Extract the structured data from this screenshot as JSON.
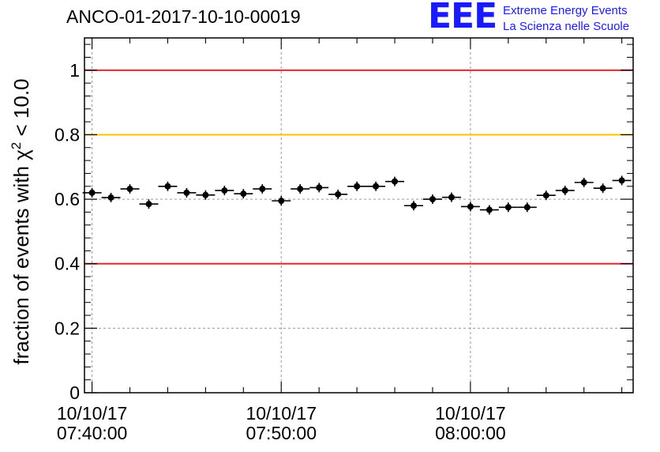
{
  "header": {
    "title": "ANCO-01-2017-10-10-00019",
    "logo_mark": "EEE",
    "logo_line1": "Extreme Energy Events",
    "logo_line2": "La Scienza nelle Scuole"
  },
  "chart_data": {
    "type": "scatter",
    "title": "ANCO-01-2017-10-10-00019",
    "ylabel_text": "fraction of events with χ",
    "ylabel_sup": "2",
    "ylabel_tail": " < 10.0",
    "xlabel": "",
    "ylim": [
      0,
      1.1
    ],
    "yticks": [
      0,
      0.2,
      0.4,
      0.6,
      0.8,
      1
    ],
    "ytick_labels": [
      "0",
      "0.2",
      "0.4",
      "0.6",
      "0.8",
      "1"
    ],
    "xlim_minutes": [
      -0.4,
      28.6
    ],
    "xticks_minutes": [
      0,
      10,
      20
    ],
    "xtick_labels": [
      {
        "date": "10/10/17",
        "time": "07:40:00"
      },
      {
        "date": "10/10/17",
        "time": "07:50:00"
      },
      {
        "date": "10/10/17",
        "time": "08:00:00"
      }
    ],
    "reference_lines": [
      {
        "y": 1.0,
        "color": "#e8262a"
      },
      {
        "y": 0.8,
        "color": "#ffc000"
      },
      {
        "y": 0.4,
        "color": "#e8262a"
      }
    ],
    "grid_lines_y": [
      0.2,
      0.6
    ],
    "bin_width_minutes": 1,
    "series": [
      {
        "color": "#000000",
        "x_minutes": [
          0,
          1,
          2,
          3,
          4,
          5,
          6,
          7,
          8,
          9,
          10,
          11,
          12,
          13,
          14,
          15,
          16,
          17,
          18,
          19,
          20,
          21,
          22,
          23,
          24,
          25,
          26,
          27,
          28
        ],
        "values": [
          0.62,
          0.605,
          0.632,
          0.585,
          0.64,
          0.62,
          0.613,
          0.627,
          0.617,
          0.632,
          0.595,
          0.632,
          0.636,
          0.615,
          0.64,
          0.64,
          0.655,
          0.58,
          0.6,
          0.606,
          0.577,
          0.567,
          0.575,
          0.575,
          0.612,
          0.627,
          0.652,
          0.634,
          0.658
        ]
      }
    ]
  }
}
